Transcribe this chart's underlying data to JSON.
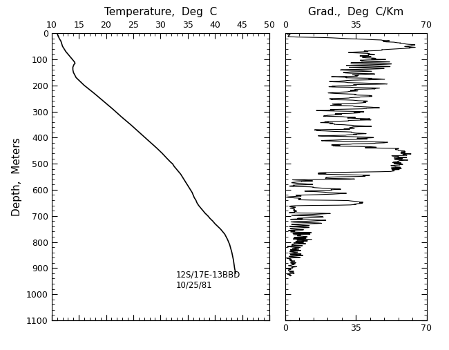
{
  "title_temp": "Temperature,  Deg  C",
  "title_grad": "Grad.,  Deg  C/Km",
  "ylabel": "Depth,  Meters",
  "annotation_line1": "12S/17E-13BBD",
  "annotation_line2": "10/25/81",
  "temp_xlim": [
    10,
    50
  ],
  "temp_xticks": [
    10,
    15,
    20,
    25,
    30,
    35,
    40,
    45,
    50
  ],
  "grad_xlim": [
    0,
    70
  ],
  "grad_xticks": [
    0,
    35,
    70
  ],
  "ylim": [
    1100,
    0
  ],
  "yticks": [
    0,
    100,
    200,
    300,
    400,
    500,
    600,
    700,
    800,
    900,
    1000,
    1100
  ],
  "bg_color": "#ffffff",
  "line_color": "#000000",
  "temp_depth": [
    0,
    5,
    10,
    20,
    30,
    50,
    60,
    70,
    80,
    90,
    100,
    110,
    115,
    120,
    130,
    140,
    150,
    170,
    200,
    230,
    260,
    290,
    320,
    350,
    380,
    410,
    440,
    460,
    480,
    495,
    500,
    510,
    520,
    530,
    540,
    550,
    560,
    570,
    580,
    590,
    600,
    610,
    620,
    630,
    640,
    650,
    660,
    670,
    680,
    690,
    700,
    710,
    720,
    730,
    740,
    750,
    760,
    770,
    790,
    810,
    840,
    870,
    900,
    920
  ],
  "temp_vals": [
    11.0,
    11.1,
    11.2,
    11.4,
    11.7,
    12.0,
    12.3,
    12.6,
    13.0,
    13.4,
    13.8,
    14.2,
    14.3,
    14.1,
    13.9,
    13.9,
    14.0,
    14.5,
    16.0,
    17.8,
    19.5,
    21.2,
    22.8,
    24.5,
    26.1,
    27.7,
    29.3,
    30.3,
    31.2,
    31.9,
    32.2,
    32.5,
    32.9,
    33.3,
    33.7,
    34.0,
    34.3,
    34.6,
    34.9,
    35.2,
    35.5,
    35.8,
    36.0,
    36.2,
    36.5,
    36.7,
    37.0,
    37.4,
    37.8,
    38.2,
    38.7,
    39.1,
    39.6,
    40.0,
    40.5,
    41.0,
    41.4,
    41.8,
    42.3,
    42.7,
    43.1,
    43.4,
    43.6,
    43.8
  ]
}
